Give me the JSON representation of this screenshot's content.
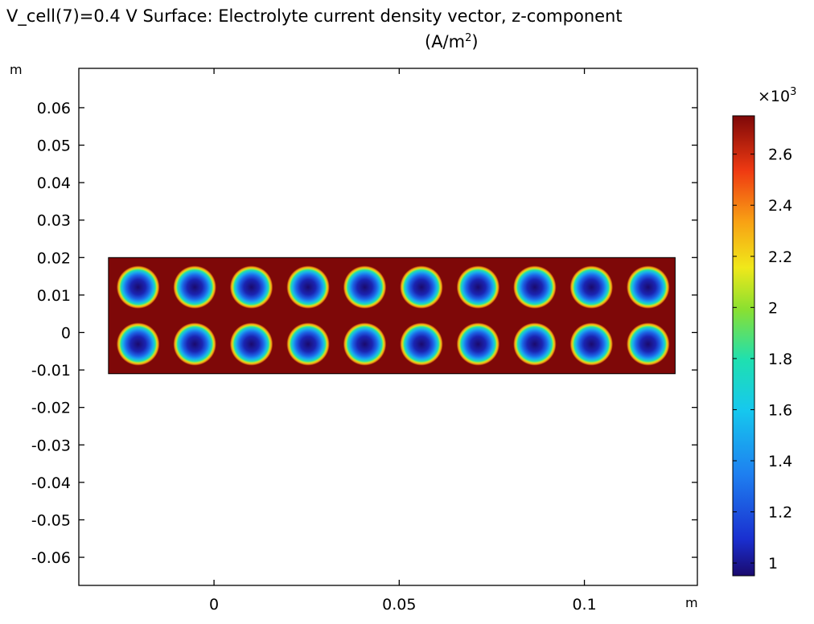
{
  "title": {
    "line1": "V_cell(7)=0.4 V  Surface: Electrolyte current density vector, z-component",
    "line2_prefix": "(A/m",
    "line2_sup": "2",
    "line2_suffix": ")"
  },
  "chart_data": {
    "type": "heatmap",
    "xunit": "m",
    "yunit": "m",
    "xlim": [
      -0.0365,
      0.1305
    ],
    "ylim": [
      -0.0675,
      0.0705
    ],
    "xticks": [
      0,
      0.05,
      0.1
    ],
    "xtick_labels": [
      "0",
      "0.05",
      "0.1"
    ],
    "yticks": [
      0.06,
      0.05,
      0.04,
      0.03,
      0.02,
      0.01,
      0,
      -0.01,
      -0.02,
      -0.03,
      -0.04,
      -0.05,
      -0.06
    ],
    "ytick_labels": [
      "0.06",
      "0.05",
      "0.04",
      "0.03",
      "0.02",
      "0.01",
      "0",
      "-0.01",
      "-0.02",
      "-0.03",
      "-0.04",
      "-0.05",
      "-0.06"
    ],
    "domain": {
      "xmin": -0.0285,
      "xmax": 0.1245,
      "ymin": -0.011,
      "ymax": 0.02
    },
    "background_value": 2.75,
    "circle_radius": 0.0058,
    "circle_centers_x": [
      -0.0205,
      -0.0052,
      0.0101,
      0.0254,
      0.0407,
      0.056,
      0.0713,
      0.0866,
      0.1019,
      0.1172
    ],
    "circle_centers_y": [
      0.0121,
      -0.0031
    ],
    "circle_center_value": 0.95,
    "colorbar": {
      "multiplier": "×10",
      "exponent": "3",
      "min": 0.95,
      "max": 2.75,
      "ticks": [
        2.6,
        2.4,
        2.2,
        2,
        1.8,
        1.6,
        1.4,
        1.2,
        1
      ],
      "tick_labels": [
        "2.6",
        "2.4",
        "2.2",
        "2",
        "1.8",
        "1.6",
        "1.4",
        "1.2",
        "1"
      ],
      "colormap": "rainbow"
    }
  }
}
